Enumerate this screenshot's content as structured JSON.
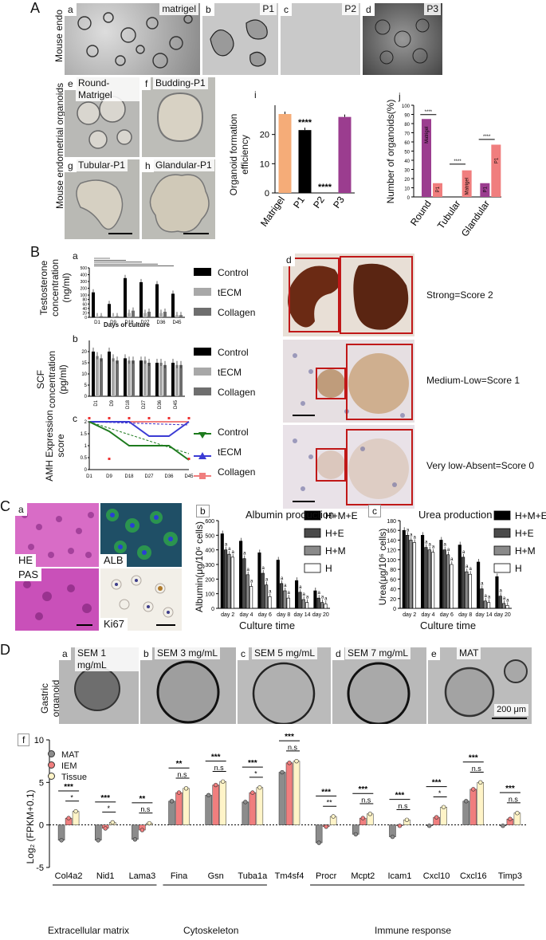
{
  "A": {
    "label": "A",
    "side": "Mouse endo",
    "side2": "Mouse endometrial organoids",
    "top": [
      {
        "tag": "a",
        "title": "matrigel"
      },
      {
        "tag": "b",
        "title": "P1"
      },
      {
        "tag": "c",
        "title": "P2"
      },
      {
        "tag": "d",
        "title": "P3"
      }
    ],
    "orgs": [
      {
        "tag": "e",
        "title": "Round-Matrigel"
      },
      {
        "tag": "f",
        "title": "Budding-P1"
      },
      {
        "tag": "g",
        "title": "Tubular-P1"
      },
      {
        "tag": "h",
        "title": "Glandular-P1"
      }
    ],
    "i": {
      "tag": "i",
      "ylabel": "Organoid formation efficiency",
      "stars": [
        "****",
        "****"
      ]
    },
    "j": {
      "tag": "j",
      "ylabel": "Number of organoids(%)",
      "stars": [
        "****",
        "****",
        "****"
      ],
      "bar_text": [
        "Matrigel",
        "P1",
        "P1",
        "Matrigel",
        "P1",
        "P1"
      ]
    }
  },
  "B": {
    "label": "B",
    "a": {
      "tag": "a",
      "ylabel": "Testosterone concentration (ng/ml)",
      "xlabel": "Days of culture",
      "legend": [
        "Control",
        "tECM",
        "Collagen"
      ]
    },
    "b": {
      "tag": "b",
      "ylabel": "SCF concentration (pg/ml)",
      "legend": [
        "Control",
        "tECM",
        "Collagen"
      ]
    },
    "c": {
      "tag": "c",
      "ylabel": "AMH Expression score",
      "legend": [
        "Control",
        "tECM",
        "Collagen"
      ]
    },
    "d": {
      "tag": "d",
      "scores": [
        "Strong=Score 2",
        "Medium-Low=Score 1",
        "Very low-Absent=Score 0"
      ]
    }
  },
  "C": {
    "label": "C",
    "a": {
      "tag": "a",
      "stains": [
        "HE",
        "ALB",
        "PAS",
        "Ki67"
      ]
    },
    "b": {
      "tag": "b",
      "title": "Albumin production",
      "ylabel": "Albumin(μg/10⁶ cells)",
      "xlabel": "Culture time",
      "legend": [
        "H+M+E",
        "H+E",
        "H+M",
        "H"
      ]
    },
    "c": {
      "tag": "c",
      "title": "Urea production",
      "ylabel": "Urea(μg/10⁶ cells)",
      "xlabel": "Culture time",
      "legend": [
        "H+M+E",
        "H+E",
        "H+M",
        "H"
      ]
    },
    "sig": "a"
  },
  "D": {
    "label": "D",
    "side": "Gastric organoid",
    "scalebar": "200 μm",
    "panels": [
      {
        "tag": "a",
        "title": "SEM 1 mg/mL"
      },
      {
        "tag": "b",
        "title": "SEM 3 mg/mL"
      },
      {
        "tag": "c",
        "title": "SEM 5 mg/mL"
      },
      {
        "tag": "d",
        "title": "SEM 7 mg/mL"
      },
      {
        "tag": "e",
        "title": "MAT"
      }
    ],
    "f": {
      "tag": "f",
      "ylabel": "Log₂ (FPKM+0.1)",
      "legend": [
        "MAT",
        "IEM",
        "Tissue"
      ],
      "groups": [
        "Extracellular matrix",
        "Cytoskeleton",
        "Immune response"
      ],
      "sig": [
        [
          "***",
          "*"
        ],
        [
          "***",
          "*"
        ],
        [
          "**",
          "n.s"
        ],
        [
          "**",
          "n.s"
        ],
        [
          "***",
          "n.s"
        ],
        [
          "***",
          "*"
        ],
        [
          "***",
          "n.s"
        ],
        [
          "***",
          "**"
        ],
        [
          "***",
          "n.s"
        ],
        [
          "***",
          "n.s"
        ],
        [
          "***",
          "*"
        ],
        [
          "***",
          "n.s"
        ],
        [
          "***",
          "n.s"
        ]
      ]
    }
  },
  "chart_data": [
    {
      "type": "bar",
      "id": "A-i",
      "categories": [
        "Matrigel",
        "P1",
        "P2",
        "P3"
      ],
      "values": [
        27,
        21.5,
        0,
        26
      ],
      "ylim": [
        0,
        30
      ],
      "yticks": [
        0,
        10,
        20
      ],
      "colors": [
        "#f5ac78",
        "#000000",
        "#000000",
        "#9b3d8f"
      ]
    },
    {
      "type": "bar",
      "id": "A-j",
      "categories": [
        "Round",
        "Tubular",
        "Glandular"
      ],
      "series": [
        {
          "name": "Matrigel",
          "values": [
            85,
            0,
            15
          ]
        },
        {
          "name": "P1",
          "values": [
            15,
            29,
            57
          ]
        }
      ],
      "ylim": [
        0,
        100
      ],
      "yticks": [
        0,
        10,
        20,
        30,
        40,
        50,
        60,
        70,
        80,
        90,
        100
      ],
      "colors": [
        "#9b3d8f",
        "#f07e7e"
      ]
    },
    {
      "type": "bar",
      "id": "B-a",
      "categories": [
        "D1",
        "D9",
        "D18",
        "D27",
        "D36",
        "D45"
      ],
      "series": [
        {
          "name": "Control",
          "values": [
            140,
            60,
            350,
            290,
            260,
            120
          ]
        },
        {
          "name": "tECM",
          "values": [
            5,
            5,
            20,
            20,
            20,
            10
          ]
        },
        {
          "name": "Collagen",
          "values": [
            5,
            5,
            30,
            25,
            25,
            10
          ]
        }
      ],
      "yticks": [
        0,
        20,
        40,
        60,
        80,
        100,
        200,
        300,
        400,
        500
      ]
    },
    {
      "type": "bar",
      "id": "B-b",
      "categories": [
        "D1",
        "D9",
        "D18",
        "D27",
        "D36",
        "D45"
      ],
      "series": [
        {
          "name": "Control",
          "values": [
            20,
            20,
            17,
            16,
            15,
            15
          ]
        },
        {
          "name": "tECM",
          "values": [
            18,
            17,
            16,
            16,
            15,
            14
          ]
        },
        {
          "name": "Collagen",
          "values": [
            17,
            16,
            16,
            15,
            14,
            14
          ]
        }
      ],
      "ylim": [
        0,
        25
      ],
      "yticks": [
        0,
        5,
        10,
        15,
        20
      ]
    },
    {
      "type": "line",
      "id": "B-c",
      "x": [
        "D1",
        "D9",
        "D18",
        "D27",
        "D36",
        "D45"
      ],
      "series": [
        {
          "name": "Control",
          "values": [
            2,
            1.6,
            1,
            1,
            1,
            0.4
          ]
        },
        {
          "name": "tECM",
          "values": [
            2,
            2,
            2,
            1.4,
            1.4,
            2
          ]
        },
        {
          "name": "Collagen",
          "values": [
            2,
            2,
            2,
            2,
            2,
            2
          ]
        }
      ],
      "ylim": [
        0,
        2
      ],
      "yticks": [
        0,
        0.5,
        1,
        1.5,
        2
      ]
    },
    {
      "type": "bar",
      "id": "C-b",
      "categories": [
        "day 2",
        "day 4",
        "day 6",
        "day 8",
        "day 14",
        "day 20"
      ],
      "series": [
        {
          "name": "H+M+E",
          "values": [
            510,
            460,
            380,
            330,
            190,
            120
          ]
        },
        {
          "name": "H+E",
          "values": [
            400,
            340,
            240,
            170,
            110,
            70
          ]
        },
        {
          "name": "H+M",
          "values": [
            370,
            230,
            160,
            120,
            60,
            40
          ]
        },
        {
          "name": "H",
          "values": [
            350,
            150,
            80,
            70,
            40,
            30
          ]
        }
      ],
      "ylim": [
        0,
        600
      ],
      "yticks": [
        0,
        100,
        200,
        300,
        400,
        500,
        600
      ]
    },
    {
      "type": "bar",
      "id": "C-c",
      "categories": [
        "day 2",
        "day 4",
        "day 6",
        "day 8",
        "day 14",
        "day 20"
      ],
      "series": [
        {
          "name": "H+M+E",
          "values": [
            160,
            150,
            140,
            130,
            95,
            65
          ]
        },
        {
          "name": "H+E",
          "values": [
            150,
            125,
            120,
            105,
            40,
            25
          ]
        },
        {
          "name": "H+M",
          "values": [
            140,
            120,
            110,
            75,
            15,
            10
          ]
        },
        {
          "name": "H",
          "values": [
            135,
            115,
            90,
            70,
            12,
            6
          ]
        }
      ],
      "ylim": [
        0,
        180
      ],
      "yticks": [
        0,
        20,
        40,
        60,
        80,
        100,
        120,
        140,
        160,
        180
      ]
    },
    {
      "type": "bar",
      "id": "D-f",
      "categories": [
        "Col4a2",
        "Nid1",
        "Lama3",
        "Fina",
        "Gsn",
        "Tuba1a",
        "Tm4sf4",
        "Procr",
        "Mcpt2",
        "Icam1",
        "Cxcl10",
        "Cxcl16",
        "Timp3"
      ],
      "series": [
        {
          "name": "MAT",
          "values": [
            -1.8,
            -1.8,
            -1.7,
            2.8,
            3.5,
            2.7,
            6.2,
            -2.1,
            -1.1,
            -1.4,
            -0.1,
            2.8,
            -0.1
          ]
        },
        {
          "name": "IEM",
          "values": [
            0.8,
            -0.4,
            -0.6,
            3.8,
            4.7,
            3.8,
            7.3,
            -0.2,
            0.8,
            -0.1,
            0.9,
            4.2,
            0.7
          ]
        },
        {
          "name": "Tissue",
          "values": [
            1.6,
            0.3,
            0.2,
            4.3,
            5.1,
            4.4,
            7.5,
            1.0,
            1.3,
            0.6,
            2.1,
            5.0,
            1.4
          ]
        }
      ],
      "ylim": [
        -5,
        10
      ],
      "yticks": [
        -5,
        0,
        5,
        10
      ],
      "colors": [
        "#8c8c8c",
        "#f07e7e",
        "#fff4c8"
      ]
    }
  ]
}
